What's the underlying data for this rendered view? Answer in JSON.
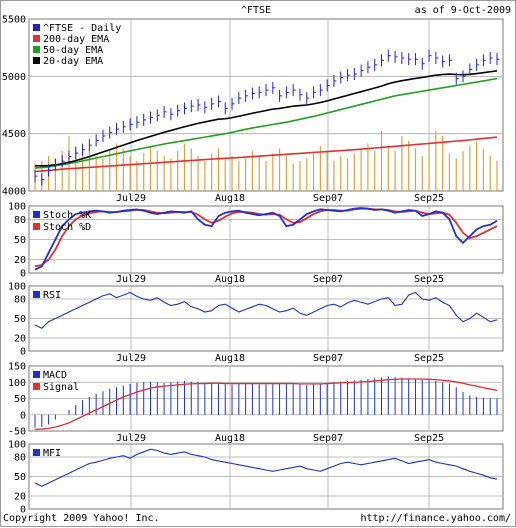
{
  "header": {
    "title": "^FTSE",
    "as_of": "as of  9-Oct-2009"
  },
  "footer": {
    "copyright": "Copyright 2009 Yahoo! Inc.",
    "url": "http://finance.yahoo.com/"
  },
  "colors": {
    "price": "#2222cc",
    "ema200": "#e03030",
    "ema50": "#20a020",
    "ema20": "#000000",
    "volume": "#e0a040",
    "stoch_k": "#2030d0",
    "stoch_d": "#e03030",
    "rsi": "#2030d0",
    "macd": "#2030d0",
    "signal": "#e03030",
    "mfi": "#2030d0",
    "grid": "#aaaaaa",
    "panel_border": "#7a7a7a"
  },
  "chart_data": [
    {
      "type": "line",
      "panel": "price",
      "ylim": [
        4000,
        5500
      ],
      "yticks": [
        "5500",
        "5000",
        "4500",
        "4000"
      ],
      "xticks": [
        "Jul29",
        "Aug18",
        "Sep07",
        "Sep25"
      ],
      "legend": [
        "^FTSE - Daily",
        "200-day EMA",
        "50-day EMA",
        "20-day EMA"
      ],
      "legend_position": "top-left",
      "grid": true,
      "series": [
        {
          "name": "^FTSE - Daily",
          "values": [
            4130,
            4100,
            4180,
            4230,
            4260,
            4300,
            4330,
            4360,
            4400,
            4440,
            4480,
            4510,
            4540,
            4560,
            4580,
            4600,
            4620,
            4640,
            4660,
            4690,
            4670,
            4700,
            4720,
            4740,
            4750,
            4730,
            4760,
            4780,
            4720,
            4760,
            4810,
            4830,
            4850,
            4860,
            4880,
            4900,
            4830,
            4860,
            4880,
            4840,
            4810,
            4860,
            4880,
            4920,
            4960,
            4990,
            5010,
            5020,
            5050,
            5080,
            5100,
            5140,
            5180,
            5170,
            5160,
            5150,
            5150,
            5110,
            5180,
            5160,
            5130,
            5140,
            4980,
            5000,
            5060,
            5100,
            5140,
            5160,
            5150
          ]
        },
        {
          "name": "200-day EMA",
          "values": [
            4170,
            4175,
            4180,
            4185,
            4190,
            4195,
            4198,
            4202,
            4206,
            4210,
            4214,
            4218,
            4222,
            4226,
            4230,
            4234,
            4238,
            4242,
            4246,
            4250,
            4254,
            4258,
            4262,
            4266,
            4270,
            4274,
            4278,
            4282,
            4285,
            4288,
            4292,
            4296,
            4300,
            4304,
            4308,
            4312,
            4316,
            4320,
            4324,
            4328,
            4332,
            4336,
            4340,
            4344,
            4348,
            4352,
            4356,
            4360,
            4365,
            4370,
            4375,
            4380,
            4385,
            4390,
            4395,
            4400,
            4405,
            4410,
            4415,
            4420,
            4425,
            4430,
            4435,
            4440,
            4446,
            4452,
            4458,
            4464,
            4470
          ]
        },
        {
          "name": "50-day EMA",
          "values": [
            4200,
            4205,
            4210,
            4220,
            4230,
            4240,
            4250,
            4262,
            4275,
            4288,
            4300,
            4312,
            4325,
            4338,
            4350,
            4362,
            4374,
            4386,
            4398,
            4410,
            4420,
            4430,
            4440,
            4450,
            4460,
            4470,
            4480,
            4490,
            4500,
            4512,
            4525,
            4538,
            4550,
            4560,
            4570,
            4580,
            4590,
            4600,
            4612,
            4625,
            4638,
            4650,
            4665,
            4680,
            4695,
            4710,
            4725,
            4740,
            4755,
            4770,
            4785,
            4800,
            4815,
            4830,
            4840,
            4850,
            4860,
            4870,
            4880,
            4890,
            4900,
            4910,
            4920,
            4930,
            4940,
            4950,
            4960,
            4970,
            4980
          ]
        },
        {
          "name": "20-day EMA",
          "values": [
            4220,
            4220,
            4222,
            4228,
            4238,
            4250,
            4265,
            4282,
            4300,
            4320,
            4340,
            4360,
            4380,
            4400,
            4420,
            4440,
            4458,
            4476,
            4494,
            4512,
            4528,
            4544,
            4560,
            4575,
            4590,
            4602,
            4614,
            4626,
            4630,
            4640,
            4652,
            4665,
            4678,
            4690,
            4702,
            4714,
            4720,
            4730,
            4740,
            4745,
            4750,
            4760,
            4772,
            4786,
            4802,
            4818,
            4834,
            4850,
            4866,
            4882,
            4898,
            4915,
            4935,
            4950,
            4962,
            4972,
            4982,
            4990,
            5000,
            5010,
            5016,
            5020,
            5016,
            5014,
            5018,
            5024,
            5032,
            5040,
            5048
          ]
        }
      ],
      "volume": [
        55,
        60,
        70,
        65,
        80,
        110,
        90,
        75,
        85,
        70,
        65,
        80,
        95,
        85,
        70,
        60,
        75,
        90,
        80,
        70,
        65,
        80,
        95,
        85,
        70,
        60,
        75,
        85,
        65,
        70,
        60,
        65,
        80,
        70,
        60,
        75,
        85,
        70,
        55,
        60,
        65,
        75,
        90,
        80,
        60,
        70,
        65,
        75,
        85,
        95,
        80,
        120,
        90,
        80,
        110,
        100,
        85,
        70,
        95,
        120,
        110,
        75,
        65,
        80,
        90,
        100,
        85,
        70,
        60
      ]
    },
    {
      "type": "line",
      "panel": "stochastic",
      "ylim": [
        0,
        100
      ],
      "yticks": [
        "100",
        "80",
        "50",
        "20",
        "0"
      ],
      "legend": [
        "Stoch %K",
        "Stoch %D"
      ],
      "series": [
        {
          "name": "Stoch %K",
          "values": [
            5,
            10,
            30,
            50,
            70,
            80,
            88,
            90,
            92,
            93,
            92,
            90,
            91,
            93,
            94,
            95,
            93,
            90,
            88,
            90,
            92,
            91,
            90,
            92,
            80,
            72,
            70,
            85,
            90,
            92,
            93,
            90,
            88,
            86,
            88,
            90,
            85,
            70,
            72,
            80,
            88,
            92,
            95,
            94,
            93,
            92,
            94,
            96,
            97,
            96,
            94,
            95,
            93,
            90,
            92,
            94,
            93,
            85,
            88,
            92,
            90,
            80,
            55,
            45,
            55,
            65,
            70,
            72,
            78
          ]
        },
        {
          "name": "Stoch %D",
          "values": [
            10,
            12,
            20,
            35,
            55,
            70,
            80,
            86,
            89,
            91,
            92,
            91,
            91,
            92,
            93,
            94,
            94,
            92,
            90,
            89,
            90,
            91,
            91,
            91,
            87,
            80,
            75,
            78,
            84,
            89,
            91,
            91,
            90,
            88,
            87,
            88,
            87,
            80,
            75,
            76,
            82,
            88,
            92,
            94,
            94,
            93,
            93,
            95,
            96,
            96,
            95,
            95,
            94,
            92,
            91,
            92,
            93,
            90,
            88,
            89,
            90,
            87,
            75,
            60,
            52,
            55,
            60,
            65,
            70
          ]
        }
      ]
    },
    {
      "type": "line",
      "panel": "rsi",
      "ylim": [
        0,
        100
      ],
      "yticks": [
        "100",
        "80",
        "50",
        "20",
        "0"
      ],
      "legend": [
        "RSI"
      ],
      "series": [
        {
          "name": "RSI",
          "values": [
            40,
            35,
            45,
            50,
            55,
            60,
            65,
            70,
            75,
            80,
            85,
            88,
            82,
            86,
            90,
            84,
            80,
            78,
            82,
            75,
            70,
            72,
            76,
            68,
            65,
            60,
            62,
            70,
            72,
            66,
            60,
            64,
            68,
            72,
            70,
            65,
            60,
            62,
            66,
            58,
            55,
            60,
            65,
            70,
            72,
            68,
            74,
            78,
            75,
            72,
            76,
            80,
            82,
            70,
            72,
            86,
            90,
            80,
            78,
            82,
            75,
            70,
            55,
            45,
            50,
            58,
            52,
            45,
            48
          ]
        }
      ]
    },
    {
      "type": "line",
      "panel": "macd",
      "ylim": [
        -50,
        150
      ],
      "yticks": [
        "150",
        "100",
        "50",
        "0",
        "-50"
      ],
      "legend": [
        "MACD",
        "Signal"
      ],
      "series": [
        {
          "name": "MACD",
          "values": [
            -40,
            -38,
            -30,
            -15,
            0,
            15,
            30,
            45,
            55,
            65,
            72,
            80,
            85,
            90,
            95,
            98,
            100,
            102,
            100,
            98,
            100,
            102,
            104,
            102,
            100,
            98,
            97,
            96,
            94,
            93,
            95,
            96,
            95,
            94,
            93,
            95,
            96,
            95,
            94,
            93,
            92,
            94,
            96,
            98,
            100,
            102,
            104,
            106,
            108,
            110,
            112,
            115,
            118,
            116,
            114,
            112,
            110,
            108,
            106,
            104,
            100,
            96,
            85,
            70,
            60,
            55,
            52,
            50,
            50
          ]
        },
        {
          "name": "Signal",
          "values": [
            -45,
            -44,
            -42,
            -38,
            -32,
            -25,
            -15,
            -5,
            5,
            15,
            25,
            35,
            45,
            55,
            62,
            70,
            76,
            82,
            86,
            88,
            90,
            92,
            94,
            95,
            96,
            96,
            97,
            97,
            96,
            96,
            96,
            96,
            96,
            96,
            96,
            96,
            96,
            96,
            96,
            95,
            95,
            95,
            95,
            96,
            97,
            98,
            99,
            100,
            101,
            102,
            104,
            106,
            108,
            109,
            110,
            110,
            110,
            110,
            109,
            108,
            106,
            104,
            101,
            97,
            92,
            88,
            83,
            79,
            75
          ]
        }
      ]
    },
    {
      "type": "line",
      "panel": "mfi",
      "ylim": [
        0,
        100
      ],
      "yticks": [
        "100",
        "80",
        "50",
        "20",
        "0"
      ],
      "legend": [
        "MFI"
      ],
      "series": [
        {
          "name": "MFI",
          "values": [
            40,
            35,
            40,
            45,
            50,
            55,
            60,
            65,
            70,
            72,
            75,
            78,
            80,
            82,
            78,
            84,
            88,
            92,
            90,
            86,
            84,
            86,
            88,
            84,
            82,
            80,
            76,
            74,
            72,
            70,
            68,
            66,
            64,
            62,
            60,
            58,
            60,
            62,
            64,
            66,
            62,
            60,
            58,
            62,
            66,
            70,
            72,
            70,
            68,
            70,
            72,
            74,
            76,
            78,
            74,
            70,
            72,
            74,
            76,
            72,
            70,
            68,
            66,
            62,
            58,
            55,
            52,
            48,
            46
          ]
        }
      ]
    }
  ]
}
